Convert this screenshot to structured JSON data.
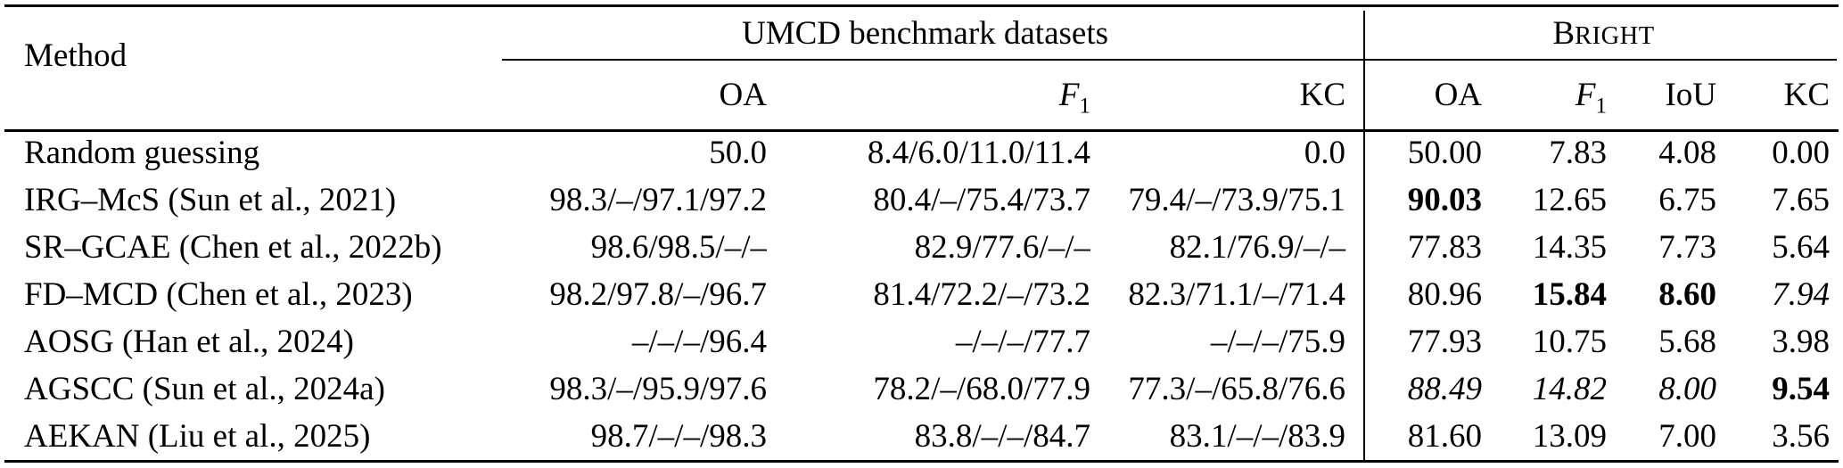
{
  "page": {
    "background": "#ffffff",
    "text_color": "#000000",
    "rule_color": "#000000"
  },
  "table": {
    "method_header": "Method",
    "groups": [
      {
        "label": "UMCD benchmark datasets",
        "smallcaps": false
      },
      {
        "label": "Bright",
        "smallcaps": true
      }
    ],
    "subheaders": [
      {
        "base": "OA",
        "sub": "",
        "italic": false
      },
      {
        "base": "F",
        "sub": "1",
        "italic": true
      },
      {
        "base": "KC",
        "sub": "",
        "italic": false
      },
      {
        "base": "OA",
        "sub": "",
        "italic": false
      },
      {
        "base": "F",
        "sub": "1",
        "italic": true
      },
      {
        "base": "IoU",
        "sub": "",
        "italic": false
      },
      {
        "base": "KC",
        "sub": "",
        "italic": false
      }
    ],
    "rows": [
      {
        "method": "Random guessing",
        "values": [
          "50.0",
          "8.4/6.0/11.0/11.4",
          "0.0",
          "50.00",
          "7.83",
          "4.08",
          "0.00"
        ],
        "styles": [
          "",
          "",
          "",
          "",
          "",
          "",
          ""
        ]
      },
      {
        "method": "IRG–McS (Sun et al., 2021)",
        "values": [
          "98.3/–/97.1/97.2",
          "80.4/–/75.4/73.7",
          "79.4/–/73.9/75.1",
          "90.03",
          "12.65",
          "6.75",
          "7.65"
        ],
        "styles": [
          "",
          "",
          "",
          "bold",
          "",
          "",
          ""
        ]
      },
      {
        "method": "SR–GCAE (Chen et al., 2022b)",
        "values": [
          "98.6/98.5/–/–",
          "82.9/77.6/–/–",
          "82.1/76.9/–/–",
          "77.83",
          "14.35",
          "7.73",
          "5.64"
        ],
        "styles": [
          "",
          "",
          "",
          "",
          "",
          "",
          ""
        ]
      },
      {
        "method": "FD–MCD (Chen et al., 2023)",
        "values": [
          "98.2/97.8/–/96.7",
          "81.4/72.2/–/73.2",
          "82.3/71.1/–/71.4",
          "80.96",
          "15.84",
          "8.60",
          "7.94"
        ],
        "styles": [
          "",
          "",
          "",
          "",
          "bold",
          "bold",
          "italic"
        ]
      },
      {
        "method": "AOSG (Han et al., 2024)",
        "values": [
          "–/–/–/96.4",
          "–/–/–/77.7",
          "–/–/–/75.9",
          "77.93",
          "10.75",
          "5.68",
          "3.98"
        ],
        "styles": [
          "",
          "",
          "",
          "",
          "",
          "",
          ""
        ]
      },
      {
        "method": "AGSCC (Sun et al., 2024a)",
        "values": [
          "98.3/–/95.9/97.6",
          "78.2/–/68.0/77.9",
          "77.3/–/65.8/76.6",
          "88.49",
          "14.82",
          "8.00",
          "9.54"
        ],
        "styles": [
          "",
          "",
          "",
          "italic",
          "italic",
          "italic",
          "bold"
        ]
      },
      {
        "method": "AEKAN (Liu et al., 2025)",
        "values": [
          "98.7/–/–/98.3",
          "83.8/–/–/84.7",
          "83.1/–/–/83.9",
          "81.60",
          "13.09",
          "7.00",
          "3.56"
        ],
        "styles": [
          "",
          "",
          "",
          "",
          "",
          "",
          ""
        ]
      }
    ]
  }
}
